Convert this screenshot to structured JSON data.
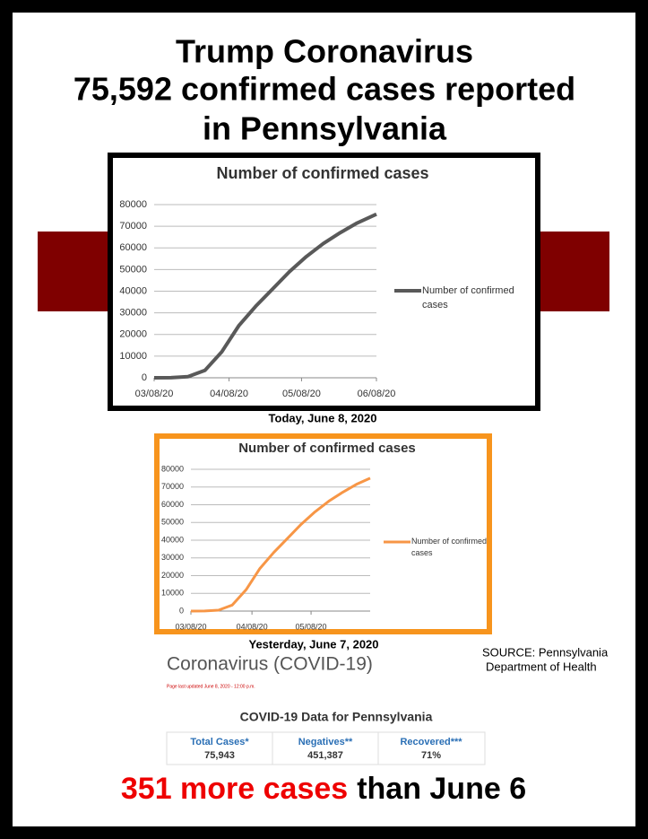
{
  "title": [
    "Trump Coronavirus",
    "75,592 confirmed cases reported",
    "in Pennsylvania"
  ],
  "chart_data": [
    {
      "type": "line",
      "title": "Number of confirmed cases",
      "x": [
        "2020-03-08",
        "2020-03-15",
        "2020-03-22",
        "2020-03-29",
        "2020-04-05",
        "2020-04-12",
        "2020-04-19",
        "2020-04-26",
        "2020-05-03",
        "2020-05-10",
        "2020-05-17",
        "2020-05-24",
        "2020-05-31",
        "2020-06-08"
      ],
      "series": [
        {
          "name": "Number of confirmed cases",
          "color": "#595959",
          "values": [
            0,
            50,
            500,
            3400,
            12000,
            24000,
            33000,
            41000,
            49000,
            56000,
            62000,
            67000,
            71500,
            75592
          ]
        }
      ],
      "xlim": [
        "2020-03-08",
        "2020-06-08"
      ],
      "xticks": [
        {
          "value": "2020-03-08",
          "label": "03/08/20"
        },
        {
          "value": "2020-04-08",
          "label": "04/08/20"
        },
        {
          "value": "2020-05-08",
          "label": "05/08/20"
        },
        {
          "value": "2020-06-08",
          "label": "06/08/20"
        }
      ],
      "ylim": [
        0,
        80000
      ],
      "yticks": [
        0,
        10000,
        20000,
        30000,
        40000,
        50000,
        60000,
        70000,
        80000
      ],
      "grid": true,
      "legend": "right"
    },
    {
      "type": "line",
      "title": "Number of confirmed cases",
      "x": [
        "2020-03-08",
        "2020-03-15",
        "2020-03-22",
        "2020-03-29",
        "2020-04-05",
        "2020-04-12",
        "2020-04-19",
        "2020-04-26",
        "2020-05-03",
        "2020-05-10",
        "2020-05-17",
        "2020-05-24",
        "2020-05-31",
        "2020-06-07"
      ],
      "series": [
        {
          "name": "Number of confirmed cases",
          "color": "#f79646",
          "values": [
            0,
            50,
            500,
            3400,
            12000,
            24000,
            33000,
            41000,
            49000,
            56000,
            62000,
            67000,
            71500,
            75000
          ]
        }
      ],
      "xlim": [
        "2020-03-08",
        "2020-06-07"
      ],
      "xticks": [
        {
          "value": "2020-03-08",
          "label": "03/08/20"
        },
        {
          "value": "2020-04-08",
          "label": "04/08/20"
        },
        {
          "value": "2020-05-08",
          "label": "05/08/20"
        }
      ],
      "ylim": [
        0,
        80000
      ],
      "yticks": [
        0,
        10000,
        20000,
        30000,
        40000,
        50000,
        60000,
        70000,
        80000
      ],
      "grid": true,
      "legend": "right"
    }
  ],
  "captions": [
    "Today, June 8, 2020",
    "Yesterday, June 7, 2020"
  ],
  "source": [
    "SOURCE: Pennsylvania",
    "Department of Health"
  ],
  "covid_panel": {
    "heading": "Coronavirus (COVID-19)",
    "updated": "Page last updated June 8, 2020 - 12:00 p.m.",
    "table_title": "COVID-19 Data for Pennsylvania",
    "headers": [
      "Total Cases*",
      "Negatives**",
      "Recovered***"
    ],
    "values": [
      "75,943",
      "451,387",
      "71%"
    ]
  },
  "footer": {
    "highlight": "351 more cases",
    "rest": "than June 6"
  }
}
